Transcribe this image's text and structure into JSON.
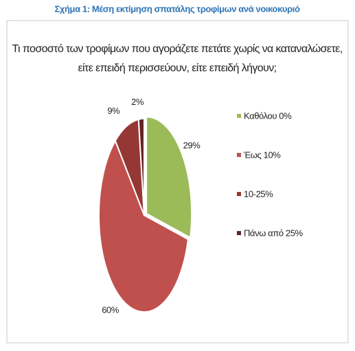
{
  "figure_caption": "Σχήμα 1: Μέση εκτίμηση σπατάλης τροφίμων ανά νοικοκυριό",
  "chart_data": {
    "type": "pie",
    "title": [
      "Τι ποσοστό των τροφίμων που αγοράζετε πετάτε χωρίς να καταναλώσετε,",
      "είτε επειδή περισσεύουν, είτε επειδή λήγουν;"
    ],
    "categories": [
      "Καθόλου 0%",
      "Έως 10%",
      "10-25%",
      "Πάνω από 25%"
    ],
    "values": [
      29,
      60,
      9,
      2
    ],
    "value_labels": [
      "29%",
      "60%",
      "9%",
      "2%"
    ],
    "colors": [
      "#9bbb59",
      "#c0504d",
      "#953735",
      "#632523"
    ],
    "legend": "right"
  }
}
